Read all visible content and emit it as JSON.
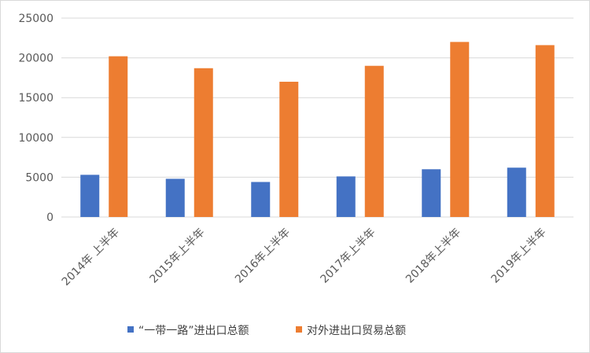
{
  "chart_data": {
    "type": "bar",
    "title": "",
    "xlabel": "",
    "ylabel": "",
    "categories": [
      "2014年 上半年",
      "2015年上半年",
      "2016年上半年",
      "2017年上半年",
      "2018年上半年",
      "2019年上半年"
    ],
    "series": [
      {
        "name": "“一带一路”进出口总额",
        "color": "#4472C4",
        "values": [
          5300,
          4800,
          4400,
          5100,
          6000,
          6200
        ]
      },
      {
        "name": "对外进出口贸易总额",
        "color": "#ED7D31",
        "values": [
          20200,
          18700,
          17000,
          19000,
          22000,
          21600
        ]
      }
    ],
    "ylim": [
      0,
      25000
    ],
    "yticks": [
      0,
      5000,
      10000,
      15000,
      20000,
      25000
    ],
    "grid": true,
    "legend_position": "bottom"
  }
}
